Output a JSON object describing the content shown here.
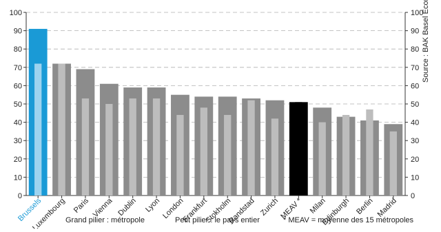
{
  "chart_data": {
    "type": "bar",
    "categories": [
      "Brussels",
      "Luxembourg",
      "Paris",
      "Vienna",
      "Dublin",
      "Lyon",
      "London",
      "Frankfurt",
      "Stokholm",
      "Randstad",
      "Zurich",
      "MEAV *",
      "Milan",
      "Edinburgh",
      "Berlin",
      "Madrid"
    ],
    "series": [
      {
        "values": [
          91,
          72,
          69,
          61,
          59,
          59,
          55,
          54,
          54,
          53,
          52,
          51,
          48,
          43,
          41,
          39
        ]
      },
      {
        "values": [
          72,
          72,
          53,
          50,
          53,
          53,
          44,
          48,
          44,
          52,
          42,
          51,
          40,
          44,
          47,
          35
        ]
      }
    ],
    "ylim": [
      0,
      100
    ],
    "yticks": [
      0,
      10,
      20,
      30,
      40,
      50,
      60,
      70,
      80,
      90,
      100
    ],
    "grid": true,
    "highlight": {
      "Brussels": "#1a9ad6",
      "MEAV *": "#000000"
    },
    "colors": {
      "big_pillar": "#8c8c8c",
      "small_pillar": "#bdbdbd",
      "brussels_big": "#1a9ad6",
      "brussels_small": "#9dd3ef",
      "meav": "#000000",
      "axis": "#333333",
      "grid": "#b0b0b0"
    }
  },
  "legend": {
    "big": "Grand pilier : métropole",
    "small": "Petit pilier : le pays entier",
    "meav_note": "* MEAV = moyenne des 15 métropoles"
  },
  "source": "Source : BAK Basel Economics"
}
